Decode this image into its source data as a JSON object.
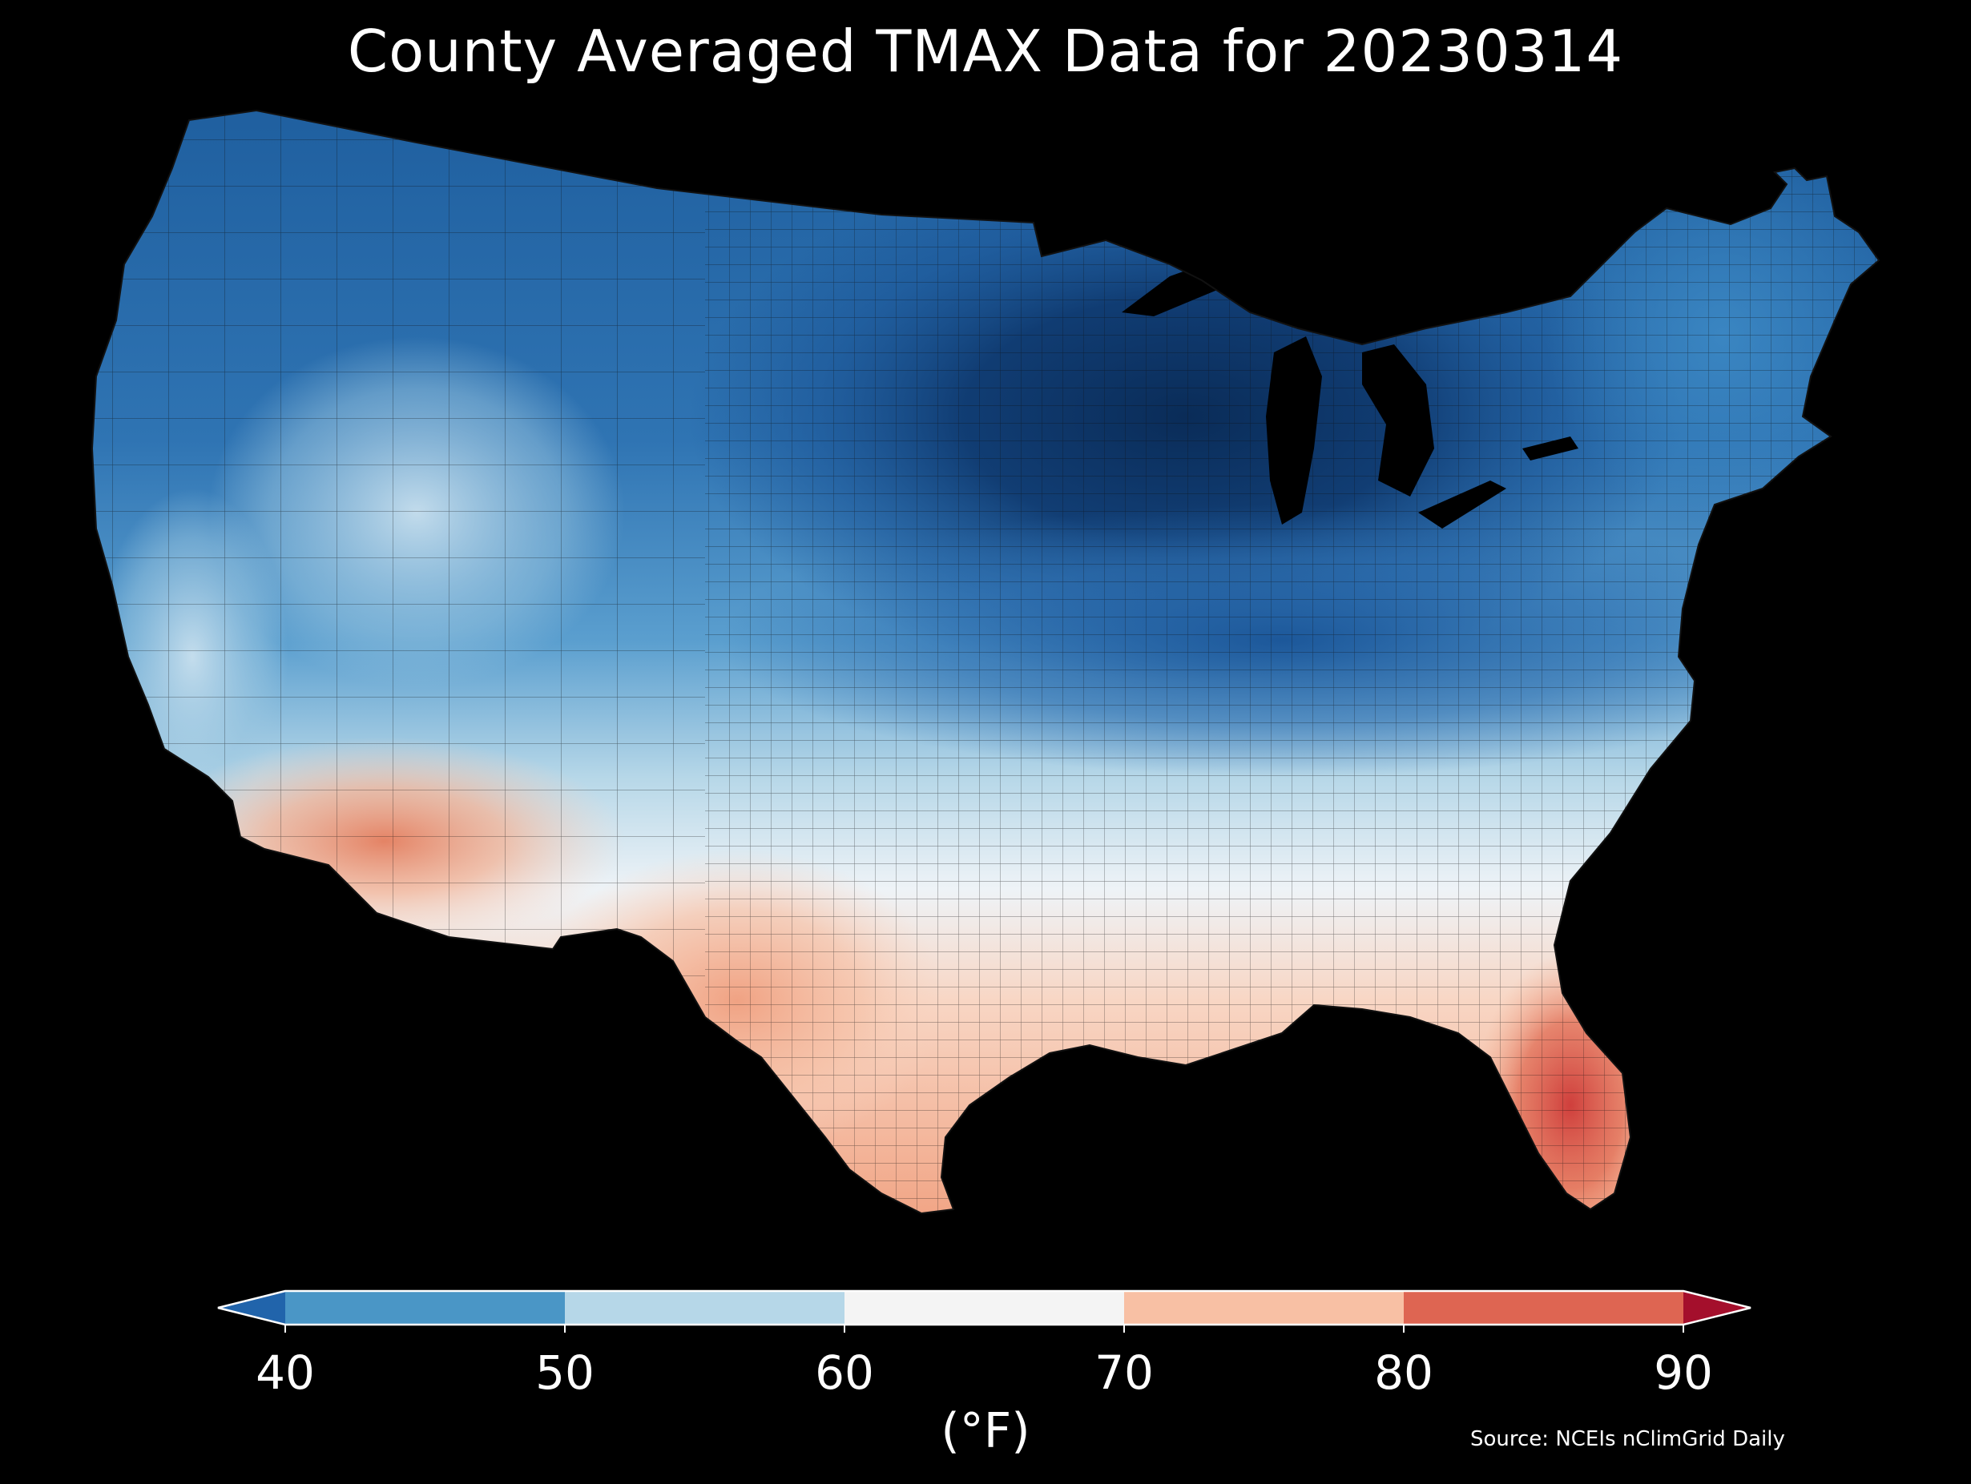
{
  "title": "County Averaged TMAX Data for 20230314",
  "colorbar": {
    "units": "(°F)",
    "ticks": [
      "40",
      "50",
      "60",
      "70",
      "80",
      "90"
    ],
    "bins": [
      {
        "from": 40,
        "to": 50,
        "color": "#4a96c6"
      },
      {
        "from": 50,
        "to": 60,
        "color": "#b6d7e8"
      },
      {
        "from": 60,
        "to": 70,
        "color": "#f4f4f4"
      },
      {
        "from": 70,
        "to": 80,
        "color": "#f8c0a4"
      },
      {
        "from": 80,
        "to": 90,
        "color": "#de6552"
      }
    ],
    "under_color": "#2164ab",
    "over_color": "#a40f2c"
  },
  "source": "Source: NCEIs nClimGrid Daily",
  "map_colors": {
    "coldest": "#0b305f",
    "very_cold": "#1c5a9e",
    "cold": "#3b85c1",
    "cool": "#6aaad3",
    "mild": "#b6d7e8",
    "neutral": "#eef3f7",
    "warm": "#fbd8c6",
    "hot": "#f2a07f",
    "hottest": "#d34741",
    "background": "#000000",
    "border": "#1a1a1a"
  }
}
